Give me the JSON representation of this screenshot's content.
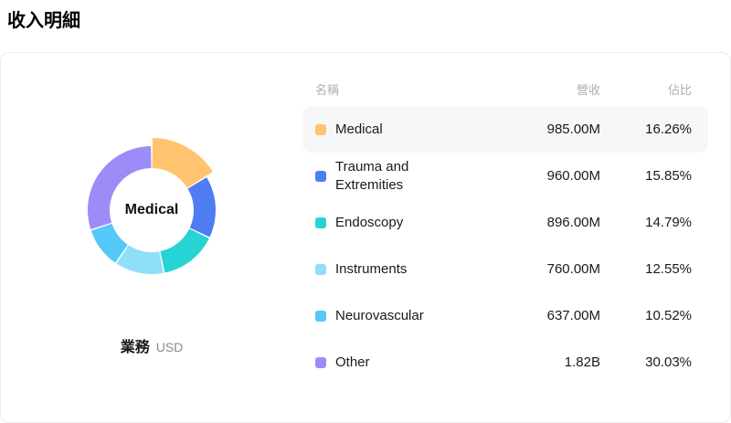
{
  "page": {
    "title": "收入明細"
  },
  "donut": {
    "center_label": "Medical",
    "footer_label": "業務",
    "footer_unit": "USD"
  },
  "table": {
    "headers": {
      "name": "名稱",
      "revenue": "營收",
      "share": "佔比"
    }
  },
  "chart_data": {
    "type": "pie",
    "title": "收入明細",
    "subtype": "donut",
    "center_label": "Medical",
    "highlighted": "Medical",
    "unit": "USD",
    "legend_position": "right-table",
    "categories": [
      "Medical",
      "Trauma and Extremities",
      "Endoscopy",
      "Instruments",
      "Neurovascular",
      "Other"
    ],
    "values": [
      16.26,
      15.85,
      14.79,
      12.55,
      10.52,
      30.03
    ],
    "revenues": [
      "985.00M",
      "960.00M",
      "896.00M",
      "760.00M",
      "637.00M",
      "1.82B"
    ],
    "shares": [
      "16.26%",
      "15.85%",
      "14.79%",
      "12.55%",
      "10.52%",
      "30.03%"
    ],
    "colors": [
      "#FFC46D",
      "#4E7DF2",
      "#27D3D3",
      "#90DFF8",
      "#54C8F8",
      "#9D8CF8"
    ],
    "start_angle_deg": 0,
    "direction": "clockwise"
  }
}
